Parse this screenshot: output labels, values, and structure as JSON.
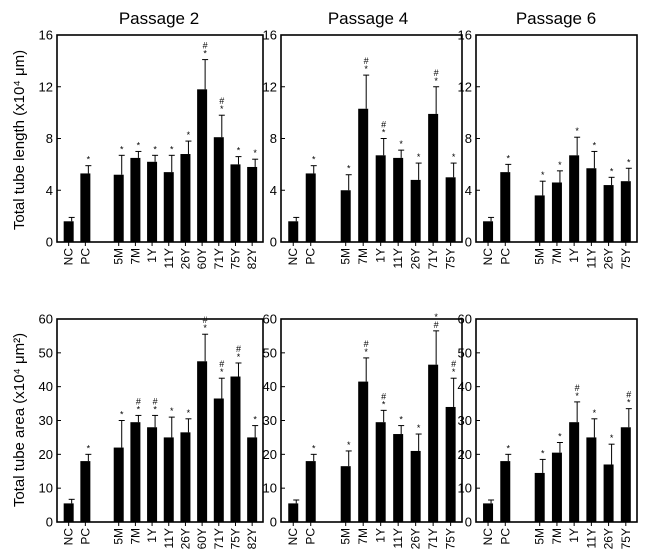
{
  "figure": {
    "column_titles": [
      "Passage 2",
      "Passage 4",
      "Passage 6"
    ],
    "row_ylabels": [
      "Total tube length (x10⁴ μm)",
      "Total tube area (x10⁴ μm²)"
    ]
  },
  "chart_data": [
    {
      "type": "bar",
      "title": "Passage 2",
      "ylabel": "Total tube length (x10⁴ μm)",
      "ylim": [
        0,
        16
      ],
      "yticks": [
        0,
        4,
        8,
        12,
        16
      ],
      "categories": [
        "NC",
        "PC",
        "",
        "5M",
        "7M",
        "1Y",
        "11Y",
        "26Y",
        "60Y",
        "71Y",
        "75Y",
        "82Y"
      ],
      "values": [
        1.6,
        5.3,
        null,
        5.2,
        6.5,
        6.2,
        5.4,
        6.8,
        11.8,
        8.1,
        6.0,
        5.8
      ],
      "errors": [
        0.3,
        0.6,
        null,
        1.5,
        0.5,
        0.5,
        1.3,
        1.0,
        2.3,
        1.7,
        0.6,
        0.6
      ],
      "marks": [
        "",
        "*",
        "",
        "*",
        "*",
        "*",
        "*",
        "*",
        "#*",
        "#*",
        "*",
        "*"
      ]
    },
    {
      "type": "bar",
      "title": "Passage 4",
      "ylabel": "Total tube length (x10⁴ μm)",
      "ylim": [
        0,
        16
      ],
      "yticks": [
        0,
        4,
        8,
        12,
        16
      ],
      "categories": [
        "NC",
        "PC",
        "",
        "5M",
        "7M",
        "1Y",
        "11Y",
        "26Y",
        "71Y",
        "75Y"
      ],
      "values": [
        1.6,
        5.3,
        null,
        4.0,
        10.3,
        6.7,
        6.5,
        4.8,
        9.9,
        5.0
      ],
      "errors": [
        0.3,
        0.6,
        null,
        1.2,
        2.6,
        1.3,
        0.6,
        1.3,
        2.1,
        1.1
      ],
      "marks": [
        "",
        "*",
        "",
        "*",
        "#*",
        "#*",
        "*",
        "*",
        "#*",
        "*"
      ]
    },
    {
      "type": "bar",
      "title": "Passage 6",
      "ylabel": "Total tube length (x10⁴ μm)",
      "ylim": [
        0,
        16
      ],
      "yticks": [
        0,
        4,
        8,
        12,
        16
      ],
      "categories": [
        "NC",
        "PC",
        "",
        "5M",
        "7M",
        "1Y",
        "11Y",
        "26Y",
        "75Y"
      ],
      "values": [
        1.6,
        5.4,
        null,
        3.6,
        4.6,
        6.7,
        5.7,
        4.4,
        4.7
      ],
      "errors": [
        0.3,
        0.6,
        null,
        1.1,
        0.9,
        1.4,
        1.3,
        0.6,
        1.0
      ],
      "marks": [
        "",
        "*",
        "",
        "*",
        "*",
        "*",
        "*",
        "*",
        "*"
      ]
    },
    {
      "type": "bar",
      "title": "",
      "ylabel": "Total tube area (x10⁴ μm²)",
      "ylim": [
        0,
        60
      ],
      "yticks": [
        0,
        10,
        20,
        30,
        40,
        50,
        60
      ],
      "categories": [
        "NC",
        "PC",
        "",
        "5M",
        "7M",
        "1Y",
        "11Y",
        "26Y",
        "60Y",
        "71Y",
        "75Y",
        "82Y"
      ],
      "values": [
        5.5,
        18.0,
        null,
        22.0,
        29.5,
        28.0,
        25.0,
        26.5,
        47.5,
        36.5,
        43.0,
        25.0
      ],
      "errors": [
        1.2,
        2.0,
        null,
        8.0,
        2.0,
        3.5,
        6.0,
        4.0,
        8.0,
        6.0,
        4.0,
        3.5
      ],
      "marks": [
        "",
        "*",
        "",
        "*",
        "#*",
        "#*",
        "*",
        "*",
        "#*",
        "#*",
        "#*",
        "*"
      ]
    },
    {
      "type": "bar",
      "title": "",
      "ylabel": "Total tube area (x10⁴ μm²)",
      "ylim": [
        0,
        60
      ],
      "yticks": [
        0,
        10,
        20,
        30,
        40,
        50,
        60
      ],
      "categories": [
        "NC",
        "PC",
        "",
        "5M",
        "7M",
        "1Y",
        "11Y",
        "26Y",
        "71Y",
        "75Y"
      ],
      "values": [
        5.5,
        18.0,
        null,
        16.5,
        41.5,
        29.5,
        26.0,
        21.0,
        46.5,
        34.0
      ],
      "errors": [
        1.0,
        2.0,
        null,
        4.5,
        7.0,
        3.5,
        2.5,
        5.0,
        10.0,
        8.5
      ],
      "marks": [
        "",
        "*",
        "",
        "*",
        "#*",
        "#*",
        "*",
        "*",
        "*#",
        "#*"
      ]
    },
    {
      "type": "bar",
      "title": "",
      "ylabel": "Total tube area (x10⁴ μm²)",
      "ylim": [
        0,
        60
      ],
      "yticks": [
        0,
        10,
        20,
        30,
        40,
        50,
        60
      ],
      "categories": [
        "NC",
        "PC",
        "",
        "5M",
        "7M",
        "1Y",
        "11Y",
        "26Y",
        "75Y"
      ],
      "values": [
        5.5,
        18.0,
        null,
        14.5,
        20.5,
        29.5,
        25.0,
        17.0,
        28.0
      ],
      "errors": [
        1.0,
        2.0,
        null,
        4.0,
        3.0,
        6.0,
        5.5,
        6.0,
        5.5
      ],
      "marks": [
        "",
        "*",
        "",
        "*",
        "*",
        "#*",
        "*",
        "*",
        "#*"
      ]
    }
  ]
}
